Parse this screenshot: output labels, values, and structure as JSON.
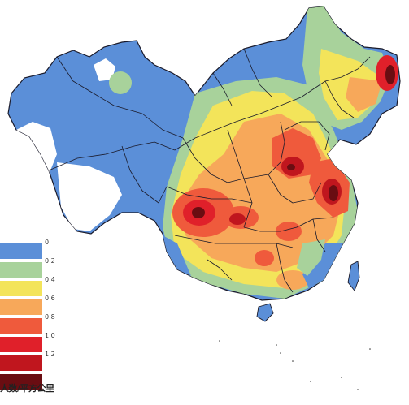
{
  "map": {
    "legend": {
      "bins": [
        {
          "label": "0",
          "color": "#5b8fd8"
        },
        {
          "label": "0.2",
          "color": "#a8d29b"
        },
        {
          "label": "0.4",
          "color": "#f3e45a"
        },
        {
          "label": "0.6",
          "color": "#f7a85a"
        },
        {
          "label": "0.8",
          "color": "#ef5a3c"
        },
        {
          "label": "1.0",
          "color": "#e0202a"
        },
        {
          "label": "1.2",
          "color": "#c0161e"
        },
        {
          "label": "",
          "color": "#6a0d12"
        }
      ],
      "unit": "人数/平方公里"
    }
  }
}
